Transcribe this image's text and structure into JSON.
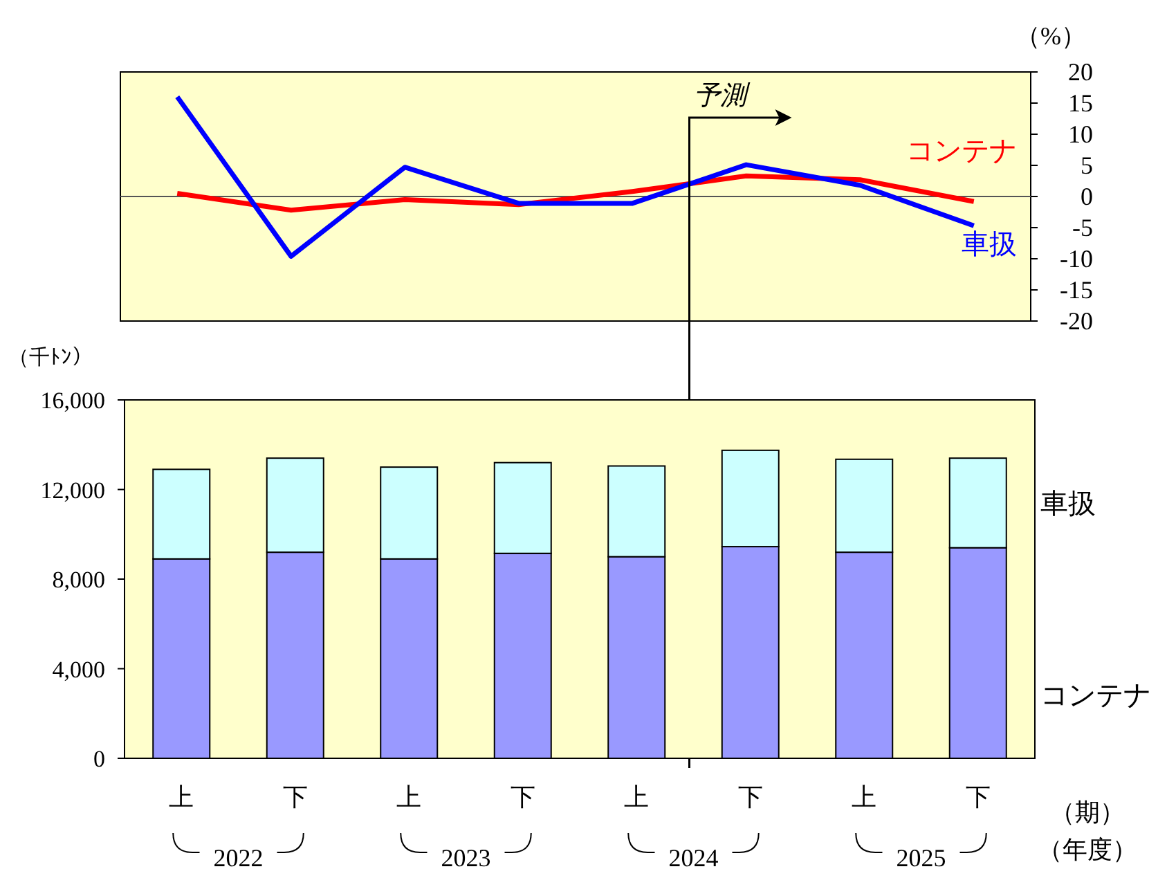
{
  "chart_data": [
    {
      "type": "line",
      "ylabel": "（%）",
      "categories": [
        null,
        null,
        null,
        null,
        null,
        null,
        null,
        null
      ],
      "ylim": [
        -20,
        20
      ],
      "yticks": [
        -20,
        -15,
        -10,
        -5,
        0,
        5,
        10,
        15,
        20
      ],
      "legend": false,
      "ref_lines": [
        {
          "axis": "y",
          "value": 0,
          "color": "#555555"
        }
      ],
      "series": [
        {
          "name": "コンテナ",
          "color": "#ff0000",
          "values": [
            0.5,
            -2.2,
            -0.5,
            -1.3,
            0.8,
            3.3,
            2.7,
            -0.8
          ]
        },
        {
          "name": "車扱",
          "color": "#0000ff",
          "values": [
            16,
            -9.6,
            4.7,
            -1.1,
            -1.1,
            5.1,
            1.8,
            -4.7
          ]
        }
      ],
      "annotations": [
        "予測"
      ]
    },
    {
      "type": "bar",
      "stacked": true,
      "ylabel": "（千ﾄﾝ）",
      "xlabel": "（期）",
      "categories": [
        "上",
        "下",
        "上",
        "下",
        "上",
        "下",
        "上",
        "下"
      ],
      "ylim": [
        0,
        16000
      ],
      "yticks": [
        0,
        {
          "value": 4000,
          "label": "4,000"
        },
        {
          "value": 8000,
          "label": "8,000"
        },
        {
          "value": 12000,
          "label": "12,000"
        },
        {
          "value": 16000,
          "label": "16,000"
        }
      ],
      "grid": false,
      "legend": false,
      "series": [
        {
          "name": "コンテナ",
          "color": "#9999ff",
          "values": [
            8900,
            9200,
            8900,
            9150,
            9000,
            9450,
            9200,
            9400
          ]
        },
        {
          "name": "車扱",
          "color": "#ccffff",
          "values": [
            4000,
            4200,
            4100,
            4050,
            4050,
            4300,
            4150,
            4000
          ]
        }
      ],
      "annotations": [
        "2022",
        "2023",
        "2024",
        "2025",
        "（年度）"
      ]
    }
  ]
}
